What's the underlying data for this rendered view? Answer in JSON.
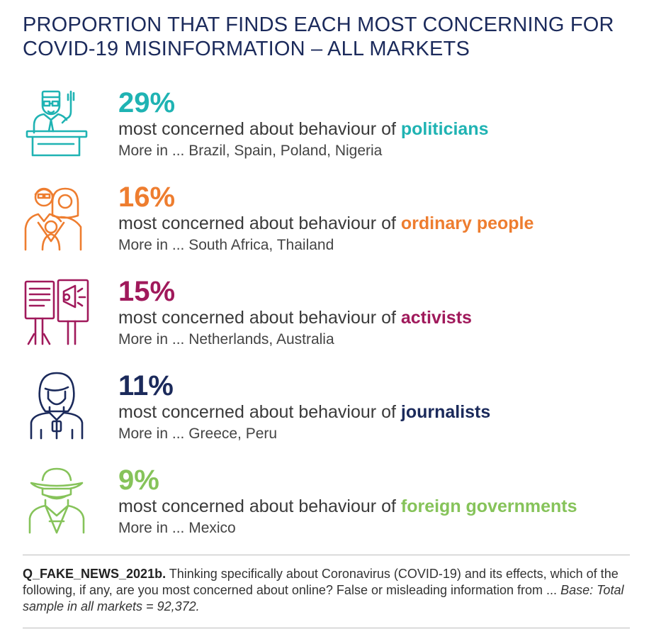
{
  "title": {
    "line1": "PROPORTION THAT FINDS EACH MOST CONCERNING FOR",
    "line2": "COVID-19 MISINFORMATION – ALL MARKETS"
  },
  "chart_data": {
    "type": "table",
    "title": "PROPORTION THAT FINDS EACH MOST CONCERNING FOR COVID-19 MISINFORMATION – ALL MARKETS",
    "categories": [
      "politicians",
      "ordinary people",
      "activists",
      "journalists",
      "foreign governments"
    ],
    "values": [
      29,
      16,
      15,
      11,
      9
    ],
    "unit": "%",
    "rows": [
      {
        "percent": "29%",
        "value": 29,
        "prefix": "most concerned about behaviour of ",
        "group": "politicians",
        "more": "More in ... Brazil, Spain, Poland, Nigeria",
        "color": "#1fb3b3",
        "icon": "politician-icon"
      },
      {
        "percent": "16%",
        "value": 16,
        "prefix": "most concerned about behaviour of ",
        "group": "ordinary people",
        "more": "More in ... South Africa, Thailand",
        "color": "#ee7d2f",
        "icon": "family-icon"
      },
      {
        "percent": "15%",
        "value": 15,
        "prefix": "most concerned about behaviour of ",
        "group": "activists",
        "more": "More in ... Netherlands, Australia",
        "color": "#a0195b",
        "icon": "megaphone-protest-icon"
      },
      {
        "percent": "11%",
        "value": 11,
        "prefix": "most concerned about behaviour of ",
        "group": "journalists",
        "more": "More in ... Greece, Peru",
        "color": "#1b2a5b",
        "icon": "journalist-icon"
      },
      {
        "percent": "9%",
        "value": 9,
        "prefix": "most concerned about behaviour of ",
        "group": "foreign governments",
        "more": "More in ... Mexico",
        "color": "#86c35a",
        "icon": "spy-icon"
      }
    ]
  },
  "footnote": {
    "question_id": "Q_FAKE_NEWS_2021b.",
    "question_text": " Thinking specifically about Coronavirus (COVID-19) and its effects, which of the following, if any, are you most concerned about online? False or misleading information from ... ",
    "base": "Base: Total sample in all markets = 92,372."
  }
}
